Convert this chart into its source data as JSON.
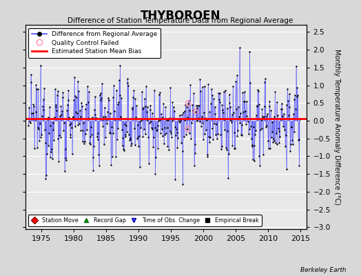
{
  "title": "THYBOROEN",
  "subtitle": "Difference of Station Temperature Data from Regional Average",
  "ylabel_right": "Monthly Temperature Anomaly Difference (°C)",
  "xlim": [
    1972.5,
    2016.0
  ],
  "ylim": [
    -3.05,
    2.7
  ],
  "yticks": [
    -3,
    -2.5,
    -2,
    -1.5,
    -1,
    -0.5,
    0,
    0.5,
    1,
    1.5,
    2,
    2.5
  ],
  "xticks": [
    1975,
    1980,
    1985,
    1990,
    1995,
    2000,
    2005,
    2010,
    2015
  ],
  "mean_bias": 0.05,
  "line_color": "#4444ff",
  "dot_color": "#000000",
  "bias_color": "#ff0000",
  "qc_color": "#ff88aa",
  "background_color": "#d8d8d8",
  "plot_bg_color": "#e8e8e8",
  "watermark": "Berkeley Earth",
  "seed": 12345
}
